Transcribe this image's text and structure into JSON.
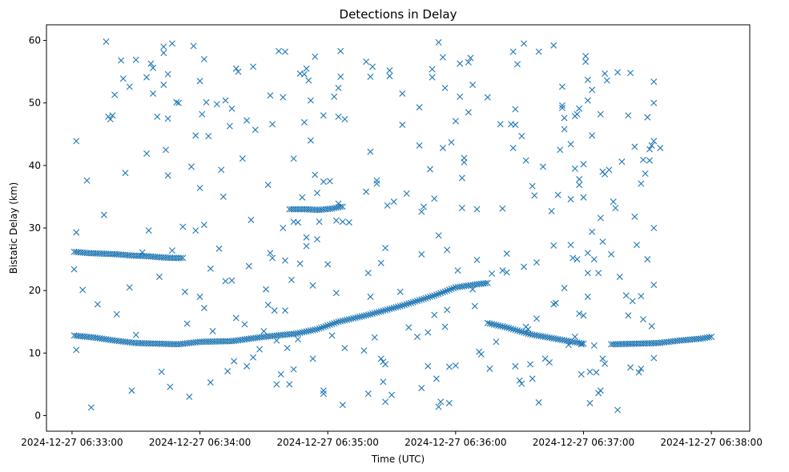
{
  "chart_data": {
    "type": "scatter",
    "title": "Detections in Delay",
    "xlabel": "Time (UTC)",
    "ylabel": "Bistatic Delay (km)",
    "marker": "x",
    "color": "#1f77b4",
    "xlim": [
      -12,
      318
    ],
    "ylim": [
      -2.5,
      62.5
    ],
    "x_unit": "seconds after 2024-12-27 06:33:00",
    "xticks": [
      {
        "value": 0,
        "label": "2024-12-27 06:33:00"
      },
      {
        "value": 60,
        "label": "2024-12-27 06:34:00"
      },
      {
        "value": 120,
        "label": "2024-12-27 06:35:00"
      },
      {
        "value": 180,
        "label": "2024-12-27 06:36:00"
      },
      {
        "value": 240,
        "label": "2024-12-27 06:37:00"
      },
      {
        "value": 300,
        "label": "2024-12-27 06:38:00"
      }
    ],
    "yticks": [
      {
        "value": 0,
        "label": "0"
      },
      {
        "value": 10,
        "label": "10"
      },
      {
        "value": 20,
        "label": "20"
      },
      {
        "value": 30,
        "label": "30"
      },
      {
        "value": 40,
        "label": "40"
      },
      {
        "value": 50,
        "label": "50"
      },
      {
        "value": 60,
        "label": "60"
      }
    ],
    "tracks": [
      {
        "name": "track-upper-left",
        "points": [
          [
            1,
            26.2
          ],
          [
            7,
            26.0
          ],
          [
            14,
            25.9
          ],
          [
            21,
            25.8
          ],
          [
            28,
            25.6
          ],
          [
            35,
            25.5
          ],
          [
            42,
            25.3
          ],
          [
            48,
            25.2
          ],
          [
            52,
            25.2
          ]
        ]
      },
      {
        "name": "track-lower-main",
        "points": [
          [
            1,
            12.8
          ],
          [
            10,
            12.5
          ],
          [
            20,
            12.0
          ],
          [
            30,
            11.6
          ],
          [
            40,
            11.5
          ],
          [
            50,
            11.4
          ],
          [
            60,
            11.8
          ],
          [
            75,
            11.9
          ],
          [
            90,
            12.6
          ],
          [
            105,
            13.1
          ],
          [
            115,
            13.8
          ],
          [
            125,
            15.0
          ],
          [
            140,
            16.2
          ],
          [
            155,
            17.6
          ],
          [
            170,
            19.2
          ],
          [
            180,
            20.5
          ],
          [
            190,
            21.0
          ],
          [
            195,
            21.2
          ]
        ]
      },
      {
        "name": "track-descending",
        "points": [
          [
            195,
            14.8
          ],
          [
            205,
            14.0
          ],
          [
            215,
            13.0
          ],
          [
            225,
            12.4
          ],
          [
            235,
            11.8
          ],
          [
            240,
            11.5
          ]
        ]
      },
      {
        "name": "track-lower-right",
        "points": [
          [
            253,
            11.4
          ],
          [
            265,
            11.5
          ],
          [
            275,
            11.6
          ],
          [
            285,
            12.0
          ],
          [
            295,
            12.3
          ],
          [
            300,
            12.6
          ]
        ]
      },
      {
        "name": "track-clusters",
        "points": [
          [
            102,
            33.0
          ],
          [
            109,
            33.0
          ],
          [
            116,
            32.9
          ],
          [
            122,
            33.1
          ],
          [
            126,
            33.4
          ],
          [
            127,
            33.4
          ]
        ]
      }
    ],
    "scatter": [
      [
        1,
        23.4
      ],
      [
        2,
        10.5
      ],
      [
        2,
        43.9
      ],
      [
        2,
        29.3
      ],
      [
        5,
        20.1
      ],
      [
        7,
        37.6
      ],
      [
        9,
        1.3
      ],
      [
        12,
        17.8
      ],
      [
        15,
        32.1
      ],
      [
        16,
        59.8
      ],
      [
        17,
        47.8
      ],
      [
        18,
        47.4
      ],
      [
        19,
        48.0
      ],
      [
        20,
        51.3
      ],
      [
        21,
        16.2
      ],
      [
        23,
        56.8
      ],
      [
        24,
        53.9
      ],
      [
        25,
        38.8
      ],
      [
        27,
        52.6
      ],
      [
        27,
        20.5
      ],
      [
        28,
        4.0
      ],
      [
        30,
        12.9
      ],
      [
        30,
        56.9
      ],
      [
        33,
        26.1
      ],
      [
        35,
        54.1
      ],
      [
        35,
        41.9
      ],
      [
        36,
        29.6
      ],
      [
        37,
        56.3
      ],
      [
        38,
        51.5
      ],
      [
        38,
        55.6
      ],
      [
        40,
        47.8
      ],
      [
        41,
        22.2
      ],
      [
        42,
        7.0
      ],
      [
        43,
        59.0
      ],
      [
        43,
        58.0
      ],
      [
        43,
        52.9
      ],
      [
        44,
        42.5
      ],
      [
        45,
        54.6
      ],
      [
        45,
        47.5
      ],
      [
        45,
        38.4
      ],
      [
        46,
        4.6
      ],
      [
        47,
        59.5
      ],
      [
        47,
        26.4
      ],
      [
        49,
        50.1
      ],
      [
        50,
        50.0
      ],
      [
        52,
        30.2
      ],
      [
        53,
        19.8
      ],
      [
        54,
        14.7
      ],
      [
        55,
        3.0
      ],
      [
        56,
        39.8
      ],
      [
        57,
        59.1
      ],
      [
        58,
        29.6
      ],
      [
        58,
        44.8
      ],
      [
        60,
        36.4
      ],
      [
        60,
        19.0
      ],
      [
        60,
        53.5
      ],
      [
        61,
        48.2
      ],
      [
        62,
        57.0
      ],
      [
        62,
        30.5
      ],
      [
        62,
        17.2
      ],
      [
        63,
        50.1
      ],
      [
        64,
        44.7
      ],
      [
        65,
        23.5
      ],
      [
        65,
        5.3
      ],
      [
        66,
        13.5
      ],
      [
        68,
        49.8
      ],
      [
        69,
        26.7
      ],
      [
        70,
        39.3
      ],
      [
        71,
        35.0
      ],
      [
        72,
        50.4
      ],
      [
        72,
        21.5
      ],
      [
        73,
        7.1
      ],
      [
        74,
        46.3
      ],
      [
        75,
        49.1
      ],
      [
        75,
        21.6
      ],
      [
        76,
        8.7
      ],
      [
        77,
        55.5
      ],
      [
        77,
        15.6
      ],
      [
        78,
        55.0
      ],
      [
        80,
        41.1
      ],
      [
        81,
        14.6
      ],
      [
        82,
        47.2
      ],
      [
        82,
        7.9
      ],
      [
        83,
        23.9
      ],
      [
        84,
        31.3
      ],
      [
        85,
        55.8
      ],
      [
        85,
        9.3
      ],
      [
        86,
        45.7
      ],
      [
        88,
        10.6
      ],
      [
        90,
        13.5
      ],
      [
        91,
        20.2
      ],
      [
        92,
        36.9
      ],
      [
        92,
        17.7
      ],
      [
        93,
        26.0
      ],
      [
        93,
        51.2
      ],
      [
        94,
        46.6
      ],
      [
        94,
        25.2
      ],
      [
        95,
        16.8
      ],
      [
        96,
        12.0
      ],
      [
        96,
        5.0
      ],
      [
        97,
        58.3
      ],
      [
        98,
        6.6
      ],
      [
        99,
        50.9
      ],
      [
        99,
        30.0
      ],
      [
        100,
        24.8
      ],
      [
        100,
        16.8
      ],
      [
        100,
        58.2
      ],
      [
        101,
        10.8
      ],
      [
        102,
        5.0
      ],
      [
        103,
        21.7
      ],
      [
        104,
        41.1
      ],
      [
        104,
        31.0
      ],
      [
        104,
        7.4
      ],
      [
        106,
        30.9
      ],
      [
        106,
        12.2
      ],
      [
        107,
        24.3
      ],
      [
        107,
        54.7
      ],
      [
        108,
        34.9
      ],
      [
        109,
        46.9
      ],
      [
        109,
        54.6
      ],
      [
        110,
        55.5
      ],
      [
        110,
        27.1
      ],
      [
        110,
        28.5
      ],
      [
        111,
        53.6
      ],
      [
        112,
        50.4
      ],
      [
        112,
        44.0
      ],
      [
        113,
        9.1
      ],
      [
        113,
        20.8
      ],
      [
        114,
        38.5
      ],
      [
        114,
        57.4
      ],
      [
        115,
        35.6
      ],
      [
        115,
        28.2
      ],
      [
        116,
        31.0
      ],
      [
        118,
        48.0
      ],
      [
        118,
        37.4
      ],
      [
        118,
        4.0
      ],
      [
        118,
        3.5
      ],
      [
        120,
        24.2
      ],
      [
        121,
        37.5
      ],
      [
        122,
        12.8
      ],
      [
        123,
        51.0
      ],
      [
        124,
        31.2
      ],
      [
        124,
        19.6
      ],
      [
        125,
        52.4
      ],
      [
        125,
        47.8
      ],
      [
        125,
        33.9
      ],
      [
        126,
        58.3
      ],
      [
        126,
        54.2
      ],
      [
        127,
        31.0
      ],
      [
        127,
        1.7
      ],
      [
        128,
        47.4
      ],
      [
        128,
        10.8
      ],
      [
        130,
        30.9
      ],
      [
        137,
        10.4
      ],
      [
        138,
        35.8
      ],
      [
        138,
        56.6
      ],
      [
        139,
        3.5
      ],
      [
        139,
        22.8
      ],
      [
        140,
        19.0
      ],
      [
        140,
        42.2
      ],
      [
        140,
        54.2
      ],
      [
        141,
        55.8
      ],
      [
        142,
        12.5
      ],
      [
        143,
        37.6
      ],
      [
        143,
        37.1
      ],
      [
        145,
        9.1
      ],
      [
        145,
        24.4
      ],
      [
        146,
        8.6
      ],
      [
        146,
        5.4
      ],
      [
        147,
        2.2
      ],
      [
        147,
        8.2
      ],
      [
        147,
        26.8
      ],
      [
        148,
        33.6
      ],
      [
        149,
        55.2
      ],
      [
        149,
        54.3
      ],
      [
        150,
        3.3
      ],
      [
        151,
        34.2
      ],
      [
        154,
        19.8
      ],
      [
        155,
        46.5
      ],
      [
        155,
        51.5
      ],
      [
        157,
        35.5
      ],
      [
        158,
        14.1
      ],
      [
        162,
        12.6
      ],
      [
        163,
        49.3
      ],
      [
        163,
        43.2
      ],
      [
        164,
        4.4
      ],
      [
        164,
        25.8
      ],
      [
        164,
        32.6
      ],
      [
        165,
        33.4
      ],
      [
        167,
        13.3
      ],
      [
        167,
        7.9
      ],
      [
        168,
        39.4
      ],
      [
        169,
        55.4
      ],
      [
        169,
        54.1
      ],
      [
        170,
        16.1
      ],
      [
        170,
        34.7
      ],
      [
        171,
        5.9
      ],
      [
        172,
        28.8
      ],
      [
        172,
        59.7
      ],
      [
        172,
        1.4
      ],
      [
        173,
        2.2
      ],
      [
        174,
        57.3
      ],
      [
        174,
        42.8
      ],
      [
        175,
        14.2
      ],
      [
        175,
        52.4
      ],
      [
        176,
        26.5
      ],
      [
        176,
        16.9
      ],
      [
        177,
        7.8
      ],
      [
        177,
        2.0
      ],
      [
        178,
        43.7
      ],
      [
        180,
        8.0
      ],
      [
        180,
        47.1
      ],
      [
        181,
        23.2
      ],
      [
        182,
        51.0
      ],
      [
        182,
        56.3
      ],
      [
        183,
        38.0
      ],
      [
        183,
        33.2
      ],
      [
        184,
        41.2
      ],
      [
        184,
        40.5
      ],
      [
        186,
        56.5
      ],
      [
        186,
        48.5
      ],
      [
        187,
        57.2
      ],
      [
        188,
        52.9
      ],
      [
        188,
        20.2
      ],
      [
        189,
        17.5
      ],
      [
        190,
        33.0
      ],
      [
        190,
        24.9
      ],
      [
        191,
        10.2
      ],
      [
        192,
        9.8
      ],
      [
        195,
        50.9
      ],
      [
        196,
        7.5
      ],
      [
        197,
        22.7
      ],
      [
        199,
        11.8
      ],
      [
        201,
        46.6
      ],
      [
        202,
        33.1
      ],
      [
        202,
        23.2
      ],
      [
        204,
        25.9
      ],
      [
        204,
        22.9
      ],
      [
        206,
        46.6
      ],
      [
        207,
        58.2
      ],
      [
        207,
        42.8
      ],
      [
        208,
        49.0
      ],
      [
        208,
        46.5
      ],
      [
        208,
        7.9
      ],
      [
        209,
        56.2
      ],
      [
        210,
        5.6
      ],
      [
        211,
        44.7
      ],
      [
        211,
        5.1
      ],
      [
        212,
        59.5
      ],
      [
        212,
        23.8
      ],
      [
        213,
        40.8
      ],
      [
        213,
        14.2
      ],
      [
        214,
        13.8
      ],
      [
        215,
        8.2
      ],
      [
        216,
        36.7
      ],
      [
        216,
        5.9
      ],
      [
        217,
        35.2
      ],
      [
        218,
        15.5
      ],
      [
        218,
        24.5
      ],
      [
        219,
        58.2
      ],
      [
        219,
        2.1
      ],
      [
        221,
        39.8
      ],
      [
        222,
        9.1
      ],
      [
        224,
        8.5
      ],
      [
        225,
        32.7
      ],
      [
        226,
        17.8
      ],
      [
        226,
        27.2
      ],
      [
        226,
        59.2
      ],
      [
        227,
        18.0
      ],
      [
        228,
        35.3
      ],
      [
        229,
        42.5
      ],
      [
        230,
        52.6
      ],
      [
        230,
        49.6
      ],
      [
        230,
        49.2
      ],
      [
        231,
        47.6
      ],
      [
        231,
        45.8
      ],
      [
        231,
        20.4
      ],
      [
        233,
        11.3
      ],
      [
        234,
        43.4
      ],
      [
        234,
        34.6
      ],
      [
        234,
        27.3
      ],
      [
        235,
        25.2
      ],
      [
        236,
        39.5
      ],
      [
        236,
        47.9
      ],
      [
        236,
        12.6
      ],
      [
        237,
        48.2
      ],
      [
        237,
        25.0
      ],
      [
        238,
        49.1
      ],
      [
        238,
        36.9
      ],
      [
        238,
        37.8
      ],
      [
        238,
        16.3
      ],
      [
        239,
        11.4
      ],
      [
        239,
        6.6
      ],
      [
        240,
        34.9
      ],
      [
        240,
        40.2
      ],
      [
        240,
        16.0
      ],
      [
        241,
        57.5
      ],
      [
        241,
        56.6
      ],
      [
        242,
        53.7
      ],
      [
        242,
        50.4
      ],
      [
        242,
        26.0
      ],
      [
        242,
        22.8
      ],
      [
        242,
        19.0
      ],
      [
        243,
        7.0
      ],
      [
        243,
        2.0
      ],
      [
        244,
        52.1
      ],
      [
        244,
        44.8
      ],
      [
        244,
        29.4
      ],
      [
        245,
        25.0
      ],
      [
        245,
        11.2
      ],
      [
        246,
        6.9
      ],
      [
        247,
        22.8
      ],
      [
        247,
        3.6
      ],
      [
        248,
        48.2
      ],
      [
        248,
        31.6
      ],
      [
        248,
        4.0
      ],
      [
        249,
        39.0
      ],
      [
        249,
        27.8
      ],
      [
        249,
        9.1
      ],
      [
        250,
        54.7
      ],
      [
        250,
        38.6
      ],
      [
        250,
        8.3
      ],
      [
        251,
        53.6
      ],
      [
        252,
        39.3
      ],
      [
        253,
        25.8
      ],
      [
        254,
        34.2
      ],
      [
        255,
        33.2
      ],
      [
        256,
        0.9
      ],
      [
        256,
        54.9
      ],
      [
        257,
        22.2
      ],
      [
        258,
        40.6
      ],
      [
        260,
        19.2
      ],
      [
        261,
        48.0
      ],
      [
        261,
        16.0
      ],
      [
        262,
        54.8
      ],
      [
        262,
        7.7
      ],
      [
        263,
        18.3
      ],
      [
        264,
        43.0
      ],
      [
        264,
        31.8
      ],
      [
        265,
        27.3
      ],
      [
        266,
        6.9
      ],
      [
        267,
        37.1
      ],
      [
        267,
        19.1
      ],
      [
        267,
        7.5
      ],
      [
        268,
        40.9
      ],
      [
        268,
        15.4
      ],
      [
        269,
        38.7
      ],
      [
        270,
        47.7
      ],
      [
        270,
        25.0
      ],
      [
        271,
        40.8
      ],
      [
        271,
        42.6
      ],
      [
        272,
        43.2
      ],
      [
        272,
        14.3
      ],
      [
        273,
        50.0
      ],
      [
        273,
        53.4
      ],
      [
        273,
        30.0
      ],
      [
        273,
        43.9
      ],
      [
        273,
        20.9
      ],
      [
        273,
        9.2
      ],
      [
        276,
        42.8
      ]
    ]
  }
}
